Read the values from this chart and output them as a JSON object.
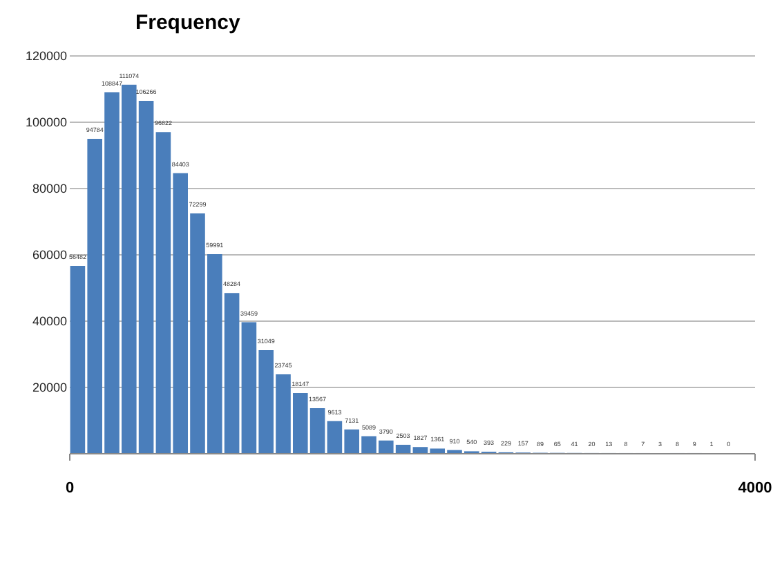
{
  "chart_data": {
    "type": "histogram",
    "title": "Frequency",
    "bins": [
      0,
      100,
      200,
      300,
      400,
      500,
      600,
      700,
      800,
      900,
      1000,
      1100,
      1200,
      1300,
      1400,
      1500,
      1600,
      1700,
      1800,
      1900,
      2000,
      2100,
      2200,
      2300,
      2400,
      2500,
      2600,
      2700,
      2800,
      2900,
      3000,
      3100,
      3200,
      3300,
      3400,
      3500,
      3600,
      3700,
      3800,
      3900
    ],
    "values": [
      56482,
      94784,
      108847,
      111074,
      106266,
      96822,
      84403,
      72299,
      59991,
      48284,
      39459,
      31049,
      23745,
      18147,
      13567,
      9613,
      7131,
      5089,
      3790,
      2503,
      1827,
      1361,
      910,
      540,
      393,
      229,
      157,
      89,
      65,
      41,
      20,
      13,
      8,
      7,
      3,
      8,
      9,
      1,
      0
    ],
    "color": "#4a7ebb",
    "data_labels": true,
    "xlim": [
      0,
      4000
    ],
    "xticks": [
      0,
      4000
    ],
    "ylim": [
      0,
      120000
    ],
    "yticks": [
      20000,
      40000,
      60000,
      80000,
      100000,
      120000
    ],
    "grid": "y"
  }
}
